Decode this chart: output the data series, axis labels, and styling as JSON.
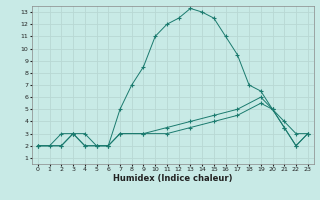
{
  "xlabel": "Humidex (Indice chaleur)",
  "xlim": [
    -0.5,
    23.5
  ],
  "ylim": [
    0.5,
    13.5
  ],
  "yticks": [
    1,
    2,
    3,
    4,
    5,
    6,
    7,
    8,
    9,
    10,
    11,
    12,
    13
  ],
  "xticks": [
    0,
    1,
    2,
    3,
    4,
    5,
    6,
    7,
    8,
    9,
    10,
    11,
    12,
    13,
    14,
    15,
    16,
    17,
    18,
    19,
    20,
    21,
    22,
    23
  ],
  "bg_color": "#c8eae6",
  "line_color": "#1a7a6e",
  "grid_color": "#b8d8d4",
  "line1_x": [
    0,
    1,
    2,
    3,
    4,
    5,
    6,
    7,
    8,
    9,
    10,
    11,
    12,
    13,
    14,
    15,
    16,
    17,
    18,
    19,
    20,
    21,
    22,
    23
  ],
  "line1_y": [
    2,
    2,
    3,
    3,
    3,
    2,
    2,
    5,
    7,
    8.5,
    11,
    12,
    12.5,
    13.3,
    13.0,
    12.5,
    11,
    9.5,
    7,
    6.5,
    5,
    4,
    3,
    3
  ],
  "line2_x": [
    0,
    2,
    3,
    4,
    5,
    6,
    7,
    9,
    11,
    13,
    15,
    17,
    19,
    20,
    21,
    22,
    23
  ],
  "line2_y": [
    2,
    2,
    3,
    2,
    2,
    2,
    3,
    3,
    3.5,
    4,
    4.5,
    5,
    6,
    5,
    3.5,
    2,
    3
  ],
  "line3_x": [
    0,
    2,
    3,
    4,
    5,
    6,
    7,
    9,
    11,
    13,
    15,
    17,
    19,
    20,
    21,
    22,
    23
  ],
  "line3_y": [
    2,
    2,
    3,
    2,
    2,
    2,
    3,
    3,
    3,
    3.5,
    4,
    4.5,
    5.5,
    5,
    3.5,
    2,
    3
  ]
}
